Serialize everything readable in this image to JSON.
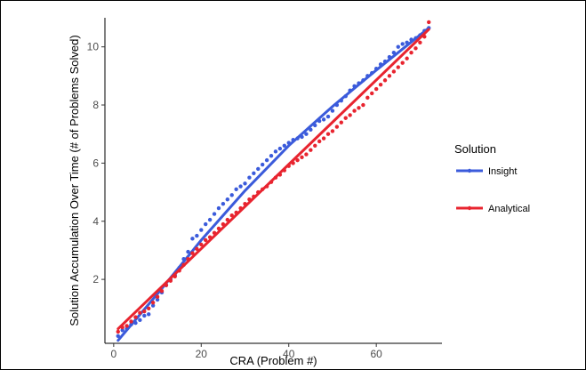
{
  "chart_data": {
    "type": "scatter",
    "xlabel": "CRA (Problem #)",
    "ylabel": "Solution Accumulation Over Time (# of Problems Solved)",
    "xlim": [
      -2,
      75
    ],
    "ylim": [
      -0.2,
      11
    ],
    "xticks": [
      "0",
      "20",
      "40",
      "60"
    ],
    "xtick_values": [
      0,
      20,
      40,
      60
    ],
    "yticks": [
      "2",
      "4",
      "6",
      "8",
      "10"
    ],
    "ytick_values": [
      2,
      4,
      6,
      8,
      10
    ],
    "grid": false,
    "legend": {
      "title": "Solution",
      "placement": "right"
    },
    "series": [
      {
        "name": "Insight",
        "color": "#3b5bdb",
        "points": [
          [
            1,
            0.05
          ],
          [
            2,
            0.25
          ],
          [
            3,
            0.3
          ],
          [
            4,
            0.45
          ],
          [
            5,
            0.5
          ],
          [
            6,
            0.6
          ],
          [
            7,
            0.75
          ],
          [
            8,
            0.8
          ],
          [
            9,
            1.1
          ],
          [
            10,
            1.3
          ],
          [
            11,
            1.55
          ],
          [
            12,
            1.8
          ],
          [
            13,
            2.0
          ],
          [
            14,
            2.15
          ],
          [
            15,
            2.4
          ],
          [
            16,
            2.7
          ],
          [
            17,
            2.95
          ],
          [
            18,
            3.4
          ],
          [
            19,
            3.5
          ],
          [
            20,
            3.7
          ],
          [
            21,
            3.9
          ],
          [
            22,
            4.05
          ],
          [
            23,
            4.25
          ],
          [
            24,
            4.45
          ],
          [
            25,
            4.6
          ],
          [
            26,
            4.75
          ],
          [
            27,
            4.9
          ],
          [
            28,
            5.1
          ],
          [
            29,
            5.2
          ],
          [
            30,
            5.3
          ],
          [
            31,
            5.5
          ],
          [
            32,
            5.65
          ],
          [
            33,
            5.8
          ],
          [
            34,
            5.95
          ],
          [
            35,
            6.1
          ],
          [
            36,
            6.25
          ],
          [
            37,
            6.4
          ],
          [
            38,
            6.5
          ],
          [
            39,
            6.6
          ],
          [
            40,
            6.7
          ],
          [
            41,
            6.8
          ],
          [
            42,
            6.85
          ],
          [
            43,
            6.9
          ],
          [
            44,
            7.0
          ],
          [
            45,
            7.15
          ],
          [
            46,
            7.3
          ],
          [
            47,
            7.45
          ],
          [
            48,
            7.5
          ],
          [
            49,
            7.6
          ],
          [
            50,
            7.8
          ],
          [
            51,
            8.0
          ],
          [
            52,
            8.15
          ],
          [
            53,
            8.3
          ],
          [
            54,
            8.5
          ],
          [
            55,
            8.65
          ],
          [
            56,
            8.75
          ],
          [
            57,
            8.85
          ],
          [
            58,
            9.0
          ],
          [
            59,
            9.1
          ],
          [
            60,
            9.25
          ],
          [
            61,
            9.4
          ],
          [
            62,
            9.5
          ],
          [
            63,
            9.65
          ],
          [
            64,
            9.8
          ],
          [
            65,
            10.0
          ],
          [
            66,
            10.1
          ],
          [
            67,
            10.15
          ],
          [
            68,
            10.25
          ],
          [
            69,
            10.3
          ],
          [
            70,
            10.4
          ],
          [
            71,
            10.55
          ],
          [
            72,
            10.65
          ]
        ],
        "fit": [
          [
            1,
            -0.1
          ],
          [
            10,
            1.5
          ],
          [
            20,
            3.35
          ],
          [
            30,
            5.05
          ],
          [
            40,
            6.6
          ],
          [
            50,
            7.95
          ],
          [
            60,
            9.2
          ],
          [
            72,
            10.65
          ]
        ]
      },
      {
        "name": "Analytical",
        "color": "#e8242f",
        "points": [
          [
            1,
            0.2
          ],
          [
            2,
            0.35
          ],
          [
            3,
            0.4
          ],
          [
            4,
            0.55
          ],
          [
            5,
            0.7
          ],
          [
            6,
            0.85
          ],
          [
            7,
            0.9
          ],
          [
            8,
            1.0
          ],
          [
            9,
            1.2
          ],
          [
            10,
            1.4
          ],
          [
            11,
            1.6
          ],
          [
            12,
            1.8
          ],
          [
            13,
            1.95
          ],
          [
            14,
            2.1
          ],
          [
            15,
            2.3
          ],
          [
            16,
            2.5
          ],
          [
            17,
            2.7
          ],
          [
            18,
            2.9
          ],
          [
            19,
            3.05
          ],
          [
            20,
            3.2
          ],
          [
            21,
            3.35
          ],
          [
            22,
            3.45
          ],
          [
            23,
            3.6
          ],
          [
            24,
            3.75
          ],
          [
            25,
            3.9
          ],
          [
            26,
            4.05
          ],
          [
            27,
            4.2
          ],
          [
            28,
            4.3
          ],
          [
            29,
            4.45
          ],
          [
            30,
            4.6
          ],
          [
            31,
            4.75
          ],
          [
            32,
            4.85
          ],
          [
            33,
            5.0
          ],
          [
            34,
            5.1
          ],
          [
            35,
            5.2
          ],
          [
            36,
            5.35
          ],
          [
            37,
            5.5
          ],
          [
            38,
            5.6
          ],
          [
            39,
            5.75
          ],
          [
            40,
            5.9
          ],
          [
            41,
            6.0
          ],
          [
            42,
            6.1
          ],
          [
            43,
            6.2
          ],
          [
            44,
            6.3
          ],
          [
            45,
            6.45
          ],
          [
            46,
            6.6
          ],
          [
            47,
            6.75
          ],
          [
            48,
            6.85
          ],
          [
            49,
            7.0
          ],
          [
            50,
            7.1
          ],
          [
            51,
            7.25
          ],
          [
            52,
            7.4
          ],
          [
            53,
            7.55
          ],
          [
            54,
            7.65
          ],
          [
            55,
            7.8
          ],
          [
            56,
            7.9
          ],
          [
            57,
            8.0
          ],
          [
            58,
            8.25
          ],
          [
            59,
            8.4
          ],
          [
            60,
            8.55
          ],
          [
            61,
            8.7
          ],
          [
            62,
            8.85
          ],
          [
            63,
            9.0
          ],
          [
            64,
            9.15
          ],
          [
            65,
            9.3
          ],
          [
            66,
            9.45
          ],
          [
            67,
            9.6
          ],
          [
            68,
            9.8
          ],
          [
            69,
            9.95
          ],
          [
            70,
            10.15
          ],
          [
            71,
            10.35
          ],
          [
            72,
            10.85
          ]
        ],
        "fit": [
          [
            1,
            0.3
          ],
          [
            72,
            10.6
          ]
        ]
      }
    ]
  }
}
